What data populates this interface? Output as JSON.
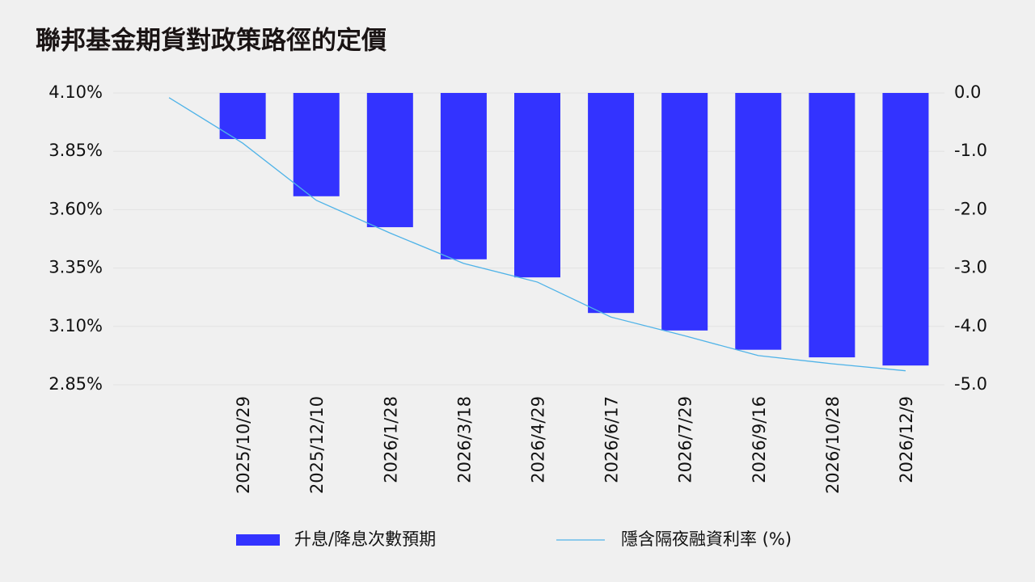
{
  "chart_data": {
    "type": "bar",
    "title": "聯邦基金期貨對政策路徑的定價",
    "categories": [
      null,
      "2025/10/29",
      "2025/12/10",
      "2026/1/28",
      "2026/3/18",
      "2026/4/29",
      "2026/6/17",
      "2026/7/29",
      "2026/9/16",
      "2026/10/28",
      "2026/12/9"
    ],
    "series": [
      {
        "name": "升息/降息次數預期",
        "type": "bar",
        "color": "#3333ff",
        "axis": "y2",
        "values": [
          null,
          -0.79,
          -1.77,
          -2.3,
          -2.85,
          -3.16,
          -3.77,
          -4.07,
          -4.4,
          -4.53,
          -4.67
        ]
      },
      {
        "name": "隱含隔夜融資利率 (%)",
        "type": "line",
        "color": "#4fb3e8",
        "values": [
          4.08,
          3.885,
          3.64,
          3.5,
          3.37,
          3.29,
          3.14,
          3.06,
          2.975,
          2.94,
          2.91
        ]
      }
    ],
    "ylim": [
      2.85,
      4.1
    ],
    "yticks": [
      {
        "value": 2.85,
        "label": "2.85%"
      },
      {
        "value": 3.1,
        "label": "3.10%"
      },
      {
        "value": 3.35,
        "label": "3.35%"
      },
      {
        "value": 3.6,
        "label": "3.60%"
      },
      {
        "value": 3.85,
        "label": "3.85%"
      },
      {
        "value": 4.1,
        "label": "4.10%"
      }
    ],
    "y2lim": [
      -5,
      0
    ],
    "y2ticks": [
      {
        "value": -5,
        "label": "-5.0"
      },
      {
        "value": -4,
        "label": "-4.0"
      },
      {
        "value": -3,
        "label": "-3.0"
      },
      {
        "value": -2,
        "label": "-2.0"
      },
      {
        "value": -1,
        "label": "-1.0"
      },
      {
        "value": 0,
        "label": "0.0"
      }
    ],
    "grid": true,
    "legend": "bottom"
  }
}
